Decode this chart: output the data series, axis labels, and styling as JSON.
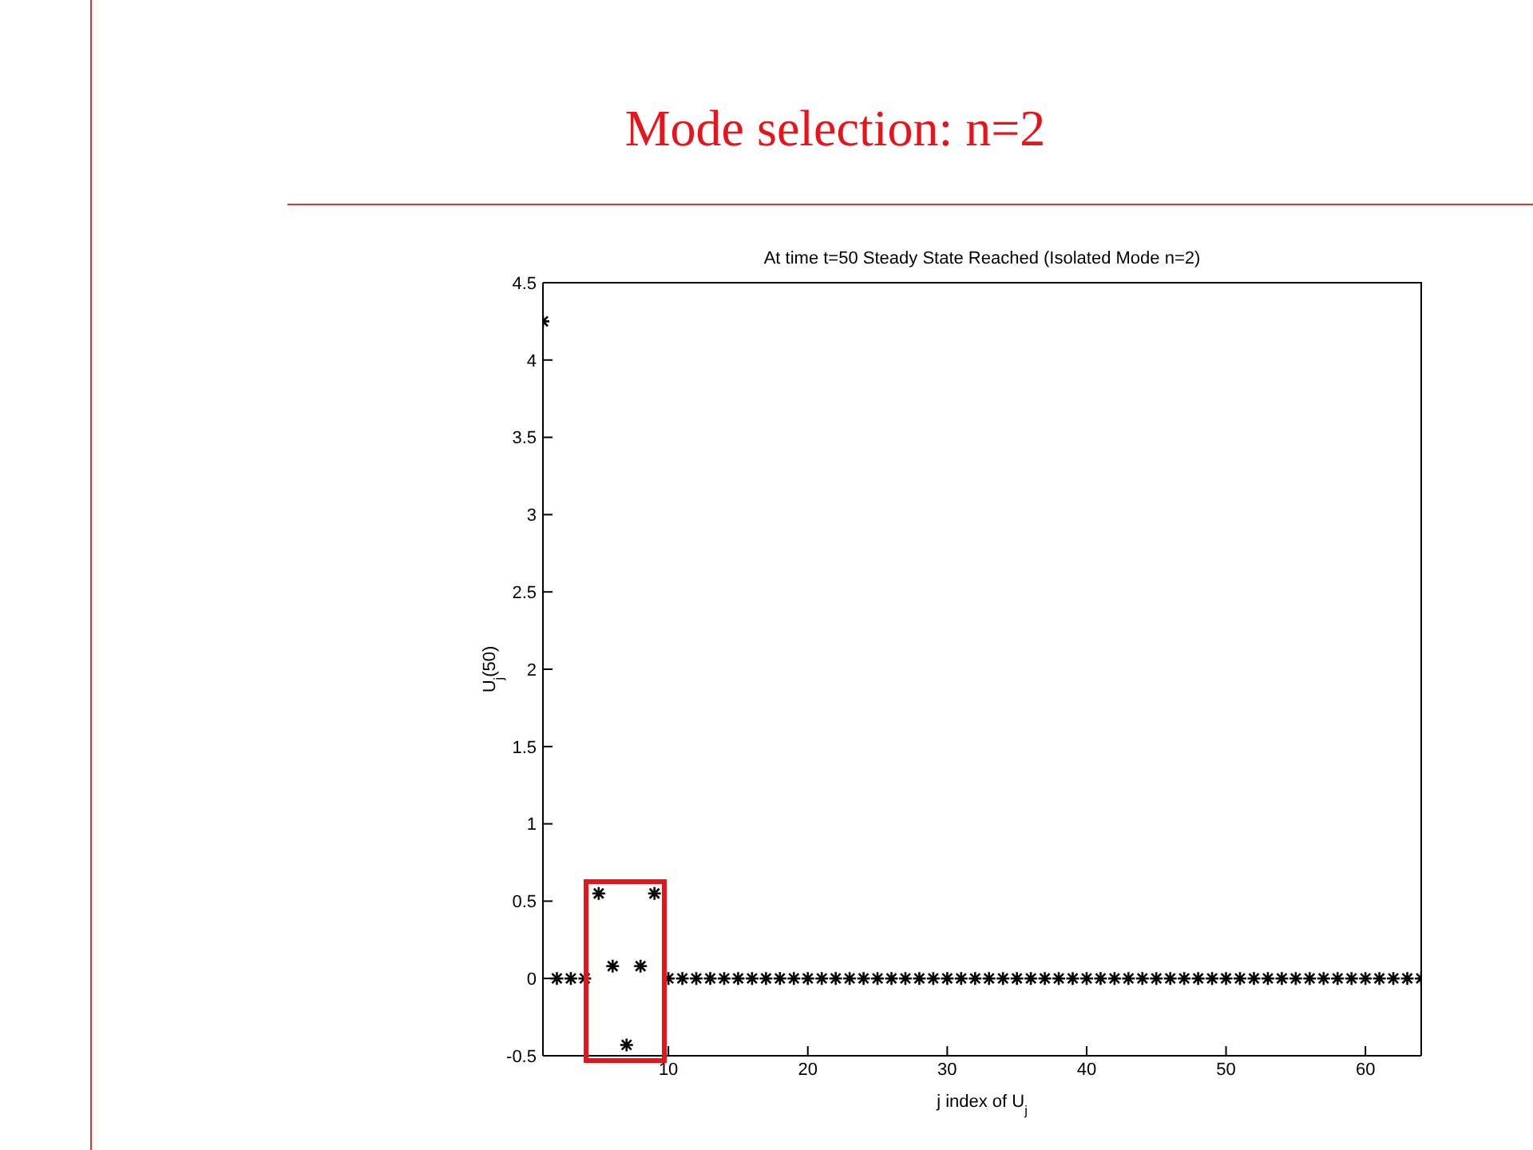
{
  "chart_data": {
    "type": "scatter",
    "title": "Mode selection: n=2",
    "subtitle": "At time t=50 Steady State Reached (Isolated Mode n=2)",
    "xlabel": "j index of U$_{j}$",
    "ylabel": "U$_{j}$(50)",
    "x": [
      1,
      2,
      3,
      4,
      5,
      6,
      7,
      8,
      9,
      10,
      11,
      12,
      13,
      14,
      15,
      16,
      17,
      18,
      19,
      20,
      21,
      22,
      23,
      24,
      25,
      26,
      27,
      28,
      29,
      30,
      31,
      32,
      33,
      34,
      35,
      36,
      37,
      38,
      39,
      40,
      41,
      42,
      43,
      44,
      45,
      46,
      47,
      48,
      49,
      50,
      51,
      52,
      53,
      54,
      55,
      56,
      57,
      58,
      59,
      60,
      61,
      62,
      63,
      64
    ],
    "series": [
      {
        "color": "#000000",
        "values": [
          4.25,
          0,
          0,
          0,
          0.55,
          0.08,
          -0.43,
          0.08,
          0.55,
          0,
          0,
          0,
          0,
          0,
          0,
          0,
          0,
          0,
          0,
          0,
          0,
          0,
          0,
          0,
          0,
          0,
          0,
          0,
          0,
          0,
          0,
          0,
          0,
          0,
          0,
          0,
          0,
          0,
          0,
          0,
          0,
          0,
          0,
          0,
          0,
          0,
          0,
          0,
          0,
          0,
          0,
          0,
          0,
          0,
          0,
          0,
          0,
          0,
          0,
          0,
          0,
          0,
          0,
          0
        ]
      }
    ],
    "xlim": [
      1,
      64
    ],
    "xticks": [
      10,
      20,
      30,
      40,
      50,
      60
    ],
    "ylim": [
      -0.5,
      4.5
    ],
    "yticks": [
      -0.5,
      0,
      0.5,
      1,
      1.5,
      2,
      2.5,
      3,
      3.5,
      4,
      4.5
    ],
    "marker": "cross"
  }
}
